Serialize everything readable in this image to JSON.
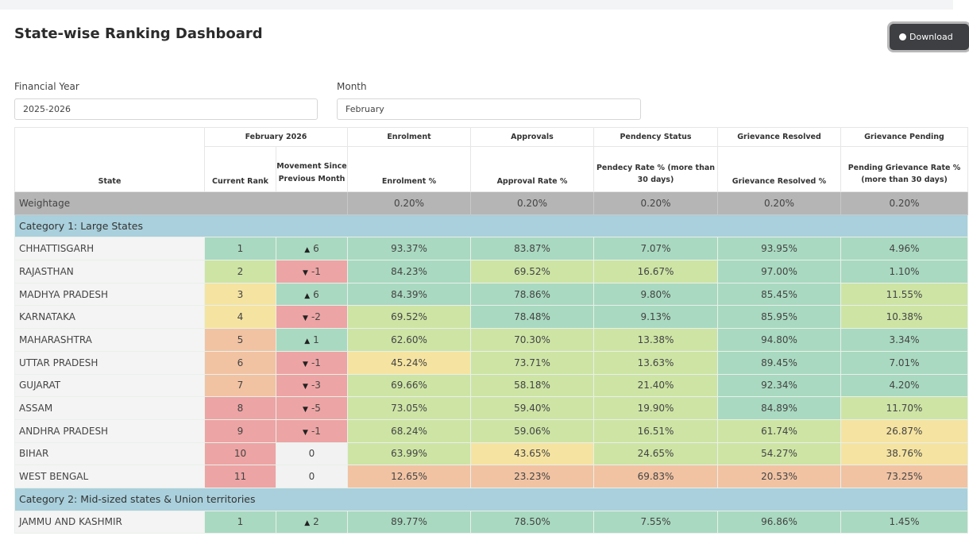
{
  "page": {
    "title": "State-wise Ranking Dashboard",
    "download_label": "Download"
  },
  "filters": {
    "fy_label": "Financial Year",
    "fy_value": "2025-2026",
    "month_label": "Month",
    "month_value": "February"
  },
  "colors": {
    "G": "#a9d9c0",
    "L": "#cde4a5",
    "Y": "#f5e3a1",
    "O": "#f1c3a3",
    "R": "#eda4a4",
    "W": "#f2f2f2"
  },
  "table": {
    "group_headers": [
      "February 2026",
      "Enrolment",
      "Approvals",
      "Pendency Status",
      "Grievance Resolved",
      "Grievance Pending"
    ],
    "headers": [
      "State",
      "Current Rank",
      "Movement Since Previous Month",
      "Enrolment %",
      "Approval Rate %",
      "Pendecy Rate % (more than 30 days)",
      "Grievance Resolved %",
      "Pending Grievance Rate % (more than 30 days)"
    ],
    "weightage": {
      "label": "Weightage",
      "values": [
        "0.20%",
        "0.20%",
        "0.20%",
        "0.20%",
        "0.20%"
      ]
    },
    "categories": [
      {
        "name": "Category 1: Large States",
        "rows": [
          {
            "state": "CHHATTISGARH",
            "rank": "1",
            "dir": "up",
            "move": "6",
            "vals": [
              "93.37%",
              "83.87%",
              "7.07%",
              "93.95%",
              "4.96%"
            ],
            "c": "GGGGGGG"
          },
          {
            "state": "RAJASTHAN",
            "rank": "2",
            "dir": "down",
            "move": "-1",
            "vals": [
              "84.23%",
              "69.52%",
              "16.67%",
              "97.00%",
              "1.10%"
            ],
            "c": "LRGLLGG"
          },
          {
            "state": "MADHYA PRADESH",
            "rank": "3",
            "dir": "up",
            "move": "6",
            "vals": [
              "84.39%",
              "78.86%",
              "9.80%",
              "85.45%",
              "11.55%"
            ],
            "c": "YGGGGGL"
          },
          {
            "state": "KARNATAKA",
            "rank": "4",
            "dir": "down",
            "move": "-2",
            "vals": [
              "69.52%",
              "78.48%",
              "9.13%",
              "85.95%",
              "10.38%"
            ],
            "c": "YRLGGGL"
          },
          {
            "state": "MAHARASHTRA",
            "rank": "5",
            "dir": "up",
            "move": "1",
            "vals": [
              "62.60%",
              "70.30%",
              "13.38%",
              "94.80%",
              "3.34%"
            ],
            "c": "OGLLLGG"
          },
          {
            "state": "UTTAR PRADESH",
            "rank": "6",
            "dir": "down",
            "move": "-1",
            "vals": [
              "45.24%",
              "73.71%",
              "13.63%",
              "89.45%",
              "7.01%"
            ],
            "c": "ORYLLGG"
          },
          {
            "state": "GUJARAT",
            "rank": "7",
            "dir": "down",
            "move": "-3",
            "vals": [
              "69.66%",
              "58.18%",
              "21.40%",
              "92.34%",
              "4.20%"
            ],
            "c": "ORLLLGG"
          },
          {
            "state": "ASSAM",
            "rank": "8",
            "dir": "down",
            "move": "-5",
            "vals": [
              "73.05%",
              "59.40%",
              "19.90%",
              "84.89%",
              "11.70%"
            ],
            "c": "RRLLLGL"
          },
          {
            "state": "ANDHRA PRADESH",
            "rank": "9",
            "dir": "down",
            "move": "-1",
            "vals": [
              "68.24%",
              "59.06%",
              "16.51%",
              "61.74%",
              "26.87%"
            ],
            "c": "RRLLLLY"
          },
          {
            "state": "BIHAR",
            "rank": "10",
            "dir": "none",
            "move": "0",
            "vals": [
              "63.99%",
              "43.65%",
              "24.65%",
              "54.27%",
              "38.76%"
            ],
            "c": "RWLYLLY"
          },
          {
            "state": "WEST BENGAL",
            "rank": "11",
            "dir": "none",
            "move": "0",
            "vals": [
              "12.65%",
              "23.23%",
              "69.83%",
              "20.53%",
              "73.25%"
            ],
            "c": "RWOOOOO"
          }
        ]
      },
      {
        "name": "Category 2: Mid-sized states & Union territories",
        "rows": [
          {
            "state": "JAMMU AND KASHMIR",
            "rank": "1",
            "dir": "up",
            "move": "2",
            "vals": [
              "89.77%",
              "78.50%",
              "7.55%",
              "96.86%",
              "1.45%"
            ],
            "c": "GGGGGGG"
          }
        ]
      }
    ]
  }
}
